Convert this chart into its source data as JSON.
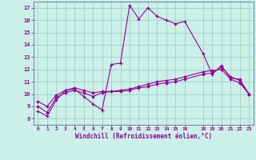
{
  "xlabel": "Windchill (Refroidissement éolien,°C)",
  "background_color": "#caf0e8",
  "line_color": "#990099",
  "spine_color": "#666699",
  "xlim": [
    -0.5,
    23.5
  ],
  "ylim": [
    7.5,
    17.5
  ],
  "xticks": [
    0,
    1,
    2,
    3,
    4,
    5,
    6,
    7,
    8,
    9,
    10,
    11,
    12,
    13,
    14,
    15,
    16,
    18,
    19,
    20,
    21,
    22,
    23
  ],
  "yticks": [
    8,
    9,
    10,
    11,
    12,
    13,
    14,
    15,
    16,
    17
  ],
  "grid_color": "#99ccbb",
  "series1_x": [
    0,
    1,
    2,
    3,
    4,
    5,
    6,
    7,
    8,
    9,
    10,
    11,
    12,
    13,
    14,
    15,
    16,
    18,
    19,
    20,
    21,
    22,
    23
  ],
  "series1_y": [
    8.6,
    8.2,
    9.5,
    10.3,
    10.4,
    9.8,
    9.2,
    8.7,
    12.4,
    12.5,
    17.2,
    16.1,
    17.0,
    16.3,
    16.0,
    15.7,
    15.9,
    13.3,
    11.6,
    12.3,
    11.3,
    11.2,
    10.0
  ],
  "series2_x": [
    0,
    1,
    2,
    3,
    4,
    5,
    6,
    7,
    8,
    9,
    10,
    11,
    12,
    13,
    14,
    15,
    16,
    18,
    19,
    20,
    21,
    22,
    23
  ],
  "series2_y": [
    9.0,
    8.5,
    9.7,
    10.1,
    10.3,
    10.1,
    9.8,
    10.1,
    10.2,
    10.2,
    10.3,
    10.5,
    10.6,
    10.8,
    10.9,
    11.0,
    11.2,
    11.6,
    11.7,
    12.2,
    11.4,
    11.1,
    10.0
  ],
  "series3_x": [
    0,
    1,
    2,
    3,
    4,
    5,
    6,
    7,
    8,
    9,
    10,
    11,
    12,
    13,
    14,
    15,
    16,
    18,
    19,
    20,
    21,
    22,
    23
  ],
  "series3_y": [
    9.4,
    9.0,
    9.9,
    10.3,
    10.5,
    10.3,
    10.1,
    10.2,
    10.2,
    10.3,
    10.4,
    10.6,
    10.8,
    11.0,
    11.1,
    11.2,
    11.4,
    11.8,
    11.9,
    12.0,
    11.2,
    10.9,
    10.0
  ]
}
